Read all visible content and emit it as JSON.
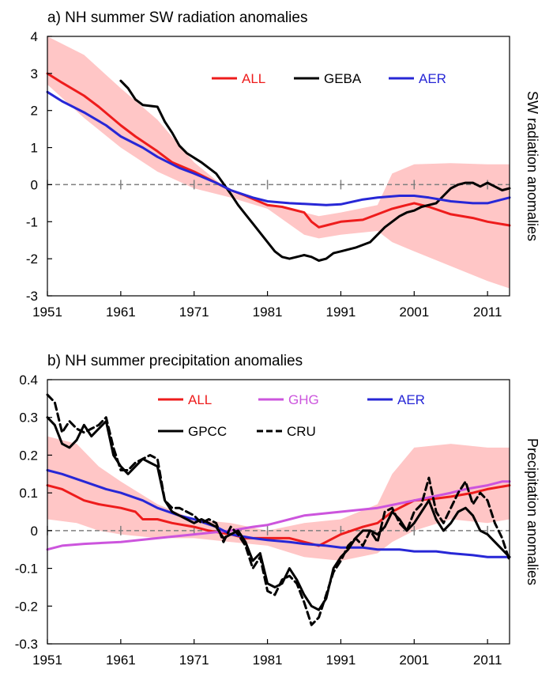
{
  "colors": {
    "ALL": "#ee1c1c",
    "GEBA": "#000000",
    "AER": "#2727d6",
    "GHG": "#cc55dd",
    "GPCC": "#000000",
    "CRU": "#000000",
    "band": "#ffc6c6",
    "zero": "#7f7f7f"
  },
  "chart_data": [
    {
      "type": "line",
      "title": "a) NH summer SW radiation anomalies",
      "ylabel": "SW radiation anomalies",
      "xlabel": "",
      "xlim": [
        1951,
        2014
      ],
      "ylim": [
        -3,
        4
      ],
      "xticks": [
        1951,
        1961,
        1971,
        1981,
        1991,
        2001,
        2011
      ],
      "yticks": [
        4,
        3,
        2,
        1,
        0,
        -1,
        -2,
        -3
      ],
      "grid": false,
      "zero_line": true,
      "legend": {
        "placement": "top-right",
        "items": [
          "ALL",
          "GEBA",
          "AER"
        ]
      },
      "band": {
        "x": [
          1951,
          1956,
          1961,
          1966,
          1971,
          1976,
          1981,
          1986,
          1988,
          1991,
          1996,
          1998,
          2001,
          2006,
          2011,
          2014
        ],
        "upper": [
          4.0,
          3.5,
          2.6,
          1.75,
          0.6,
          -0.2,
          -0.55,
          -0.75,
          -0.85,
          -0.75,
          -0.55,
          0.3,
          0.55,
          0.58,
          0.55,
          0.55
        ],
        "lower": [
          2.7,
          1.8,
          1.0,
          0.35,
          -0.1,
          -0.35,
          -0.65,
          -1.35,
          -1.45,
          -1.35,
          -1.25,
          -1.55,
          -1.8,
          -2.2,
          -2.6,
          -2.8
        ]
      },
      "series": [
        {
          "name": "ALL",
          "style": "solid",
          "x": [
            1951,
            1953,
            1956,
            1958,
            1961,
            1963,
            1966,
            1968,
            1971,
            1973,
            1976,
            1978,
            1981,
            1983,
            1986,
            1987,
            1988,
            1989,
            1991,
            1994,
            1996,
            1998,
            2000,
            2001,
            2003,
            2006,
            2009,
            2011,
            2014
          ],
          "y": [
            3.0,
            2.75,
            2.4,
            2.1,
            1.6,
            1.3,
            0.9,
            0.6,
            0.35,
            0.15,
            -0.15,
            -0.3,
            -0.55,
            -0.6,
            -0.75,
            -1.0,
            -1.15,
            -1.1,
            -1.0,
            -0.95,
            -0.8,
            -0.65,
            -0.55,
            -0.5,
            -0.6,
            -0.8,
            -0.9,
            -1.0,
            -1.1
          ]
        },
        {
          "name": "GEBA",
          "style": "solid",
          "x": [
            1961,
            1962,
            1963,
            1964,
            1966,
            1967,
            1968,
            1969,
            1970,
            1972,
            1974,
            1976,
            1977,
            1978,
            1979,
            1980,
            1981,
            1982,
            1983,
            1984,
            1985,
            1986,
            1987,
            1988,
            1989,
            1990,
            1991,
            1993,
            1995,
            1996,
            1997,
            1998,
            1999,
            2000,
            2001,
            2002,
            2003,
            2004,
            2005,
            2006,
            2007,
            2008,
            2009,
            2010,
            2011,
            2012,
            2013,
            2014
          ],
          "y": [
            2.8,
            2.6,
            2.3,
            2.15,
            2.1,
            1.7,
            1.4,
            1.05,
            0.85,
            0.6,
            0.3,
            -0.25,
            -0.55,
            -0.8,
            -1.05,
            -1.3,
            -1.55,
            -1.8,
            -1.95,
            -2.0,
            -1.95,
            -1.9,
            -1.95,
            -2.05,
            -2.0,
            -1.85,
            -1.8,
            -1.7,
            -1.55,
            -1.35,
            -1.15,
            -1.0,
            -0.85,
            -0.75,
            -0.7,
            -0.6,
            -0.55,
            -0.5,
            -0.3,
            -0.1,
            0.0,
            0.05,
            0.05,
            -0.05,
            0.05,
            -0.05,
            -0.15,
            -0.1
          ]
        },
        {
          "name": "AER",
          "style": "solid",
          "x": [
            1951,
            1953,
            1956,
            1959,
            1961,
            1964,
            1966,
            1969,
            1971,
            1974,
            1976,
            1979,
            1981,
            1984,
            1986,
            1989,
            1991,
            1994,
            1996,
            1999,
            2001,
            2003,
            2006,
            2009,
            2011,
            2013,
            2014
          ],
          "y": [
            2.5,
            2.25,
            1.95,
            1.6,
            1.3,
            1.0,
            0.75,
            0.45,
            0.3,
            0.05,
            -0.15,
            -0.35,
            -0.45,
            -0.5,
            -0.52,
            -0.55,
            -0.53,
            -0.4,
            -0.35,
            -0.3,
            -0.3,
            -0.35,
            -0.45,
            -0.5,
            -0.5,
            -0.4,
            -0.35
          ]
        }
      ]
    },
    {
      "type": "line",
      "title": "b) NH summer precipitation anomalies",
      "ylabel": "Precipitation anomalies",
      "xlabel": "",
      "xlim": [
        1951,
        2014
      ],
      "ylim": [
        -0.3,
        0.4
      ],
      "xticks": [
        1951,
        1961,
        1971,
        1981,
        1991,
        2001,
        2011
      ],
      "yticks": [
        0.4,
        0.3,
        0.2,
        0.1,
        0,
        -0.1,
        -0.2,
        -0.3
      ],
      "yticklabels": [
        "0.4",
        "0.3",
        "0.2",
        "0.1",
        "0",
        "-0.1",
        "-0.2",
        "-0.3"
      ],
      "grid": false,
      "zero_line": true,
      "legend": {
        "placement": "top",
        "items": [
          "ALL",
          "GHG",
          "AER",
          "GPCC",
          "CRU"
        ]
      },
      "band": {
        "x": [
          1951,
          1955,
          1958,
          1961,
          1966,
          1971,
          1976,
          1981,
          1986,
          1991,
          1996,
          1998,
          2001,
          2006,
          2011,
          2014
        ],
        "upper": [
          0.25,
          0.23,
          0.17,
          0.13,
          0.07,
          0.03,
          0.02,
          0.0,
          0.02,
          0.03,
          0.07,
          0.15,
          0.22,
          0.23,
          0.22,
          0.22
        ],
        "lower": [
          0.03,
          0.02,
          0.0,
          -0.01,
          -0.02,
          -0.02,
          -0.03,
          -0.04,
          -0.07,
          -0.08,
          -0.06,
          -0.03,
          0.0,
          0.03,
          0.02,
          0.03
        ]
      },
      "series": [
        {
          "name": "ALL",
          "style": "solid",
          "x": [
            1951,
            1953,
            1956,
            1958,
            1961,
            1963,
            1964,
            1966,
            1968,
            1971,
            1973,
            1976,
            1978,
            1981,
            1984,
            1986,
            1988,
            1991,
            1994,
            1996,
            1998,
            2001,
            2004,
            2006,
            2009,
            2011,
            2014
          ],
          "y": [
            0.12,
            0.11,
            0.08,
            0.07,
            0.06,
            0.05,
            0.03,
            0.03,
            0.02,
            0.01,
            0.0,
            -0.01,
            -0.02,
            -0.02,
            -0.02,
            -0.03,
            -0.04,
            -0.01,
            0.01,
            0.02,
            0.05,
            0.08,
            0.085,
            0.09,
            0.1,
            0.11,
            0.12
          ]
        },
        {
          "name": "GHG",
          "style": "solid",
          "x": [
            1951,
            1953,
            1956,
            1961,
            1966,
            1971,
            1976,
            1979,
            1981,
            1986,
            1991,
            1996,
            2001,
            2006,
            2008,
            2011,
            2013,
            2014
          ],
          "y": [
            -0.05,
            -0.04,
            -0.035,
            -0.03,
            -0.02,
            -0.01,
            0.0,
            0.01,
            0.015,
            0.04,
            0.05,
            0.06,
            0.08,
            0.1,
            0.11,
            0.12,
            0.13,
            0.13
          ]
        },
        {
          "name": "AER",
          "style": "solid",
          "x": [
            1951,
            1953,
            1956,
            1959,
            1961,
            1964,
            1966,
            1969,
            1971,
            1974,
            1976,
            1979,
            1981,
            1984,
            1986,
            1989,
            1991,
            1994,
            1996,
            1999,
            2001,
            2004,
            2006,
            2009,
            2011,
            2013,
            2014
          ],
          "y": [
            0.16,
            0.15,
            0.13,
            0.11,
            0.1,
            0.08,
            0.06,
            0.04,
            0.03,
            0.01,
            -0.01,
            -0.02,
            -0.025,
            -0.03,
            -0.035,
            -0.04,
            -0.045,
            -0.045,
            -0.05,
            -0.05,
            -0.055,
            -0.055,
            -0.06,
            -0.065,
            -0.07,
            -0.07,
            -0.07
          ]
        },
        {
          "name": "GPCC",
          "style": "solid",
          "x": [
            1951,
            1952,
            1953,
            1954,
            1955,
            1956,
            1957,
            1958,
            1959,
            1960,
            1961,
            1962,
            1963,
            1964,
            1965,
            1966,
            1967,
            1968,
            1969,
            1970,
            1971,
            1972,
            1973,
            1974,
            1975,
            1976,
            1977,
            1978,
            1979,
            1980,
            1981,
            1982,
            1983,
            1984,
            1985,
            1986,
            1987,
            1988,
            1989,
            1990,
            1991,
            1992,
            1993,
            1994,
            1995,
            1996,
            1997,
            1998,
            1999,
            2000,
            2001,
            2002,
            2003,
            2004,
            2005,
            2006,
            2007,
            2008,
            2009,
            2010,
            2011,
            2012,
            2013,
            2014
          ],
          "y": [
            0.3,
            0.28,
            0.23,
            0.22,
            0.24,
            0.28,
            0.25,
            0.27,
            0.29,
            0.2,
            0.17,
            0.15,
            0.17,
            0.19,
            0.18,
            0.17,
            0.08,
            0.05,
            0.04,
            0.03,
            0.02,
            0.03,
            0.02,
            0.01,
            -0.02,
            -0.01,
            0.0,
            -0.03,
            -0.08,
            -0.06,
            -0.14,
            -0.15,
            -0.14,
            -0.1,
            -0.13,
            -0.17,
            -0.2,
            -0.21,
            -0.18,
            -0.1,
            -0.07,
            -0.05,
            -0.02,
            0.0,
            0.0,
            -0.01,
            0.01,
            0.05,
            0.03,
            0.0,
            0.02,
            0.05,
            0.08,
            0.03,
            0.0,
            0.02,
            0.05,
            0.06,
            0.04,
            0.0,
            -0.01,
            -0.03,
            -0.05,
            -0.07
          ]
        },
        {
          "name": "CRU",
          "style": "dashed",
          "x": [
            1951,
            1952,
            1953,
            1954,
            1955,
            1956,
            1957,
            1958,
            1959,
            1960,
            1961,
            1962,
            1963,
            1964,
            1965,
            1966,
            1967,
            1968,
            1969,
            1970,
            1971,
            1972,
            1973,
            1974,
            1975,
            1976,
            1977,
            1978,
            1979,
            1980,
            1981,
            1982,
            1983,
            1984,
            1985,
            1986,
            1987,
            1988,
            1989,
            1990,
            1991,
            1992,
            1993,
            1994,
            1995,
            1996,
            1997,
            1998,
            1999,
            2000,
            2001,
            2002,
            2003,
            2004,
            2005,
            2006,
            2007,
            2008,
            2009,
            2010,
            2011,
            2012,
            2013,
            2014
          ],
          "y": [
            0.36,
            0.34,
            0.26,
            0.29,
            0.27,
            0.26,
            0.27,
            0.28,
            0.3,
            0.22,
            0.16,
            0.16,
            0.18,
            0.19,
            0.2,
            0.19,
            0.08,
            0.06,
            0.06,
            0.05,
            0.04,
            0.02,
            0.03,
            0.02,
            -0.03,
            0.01,
            -0.01,
            -0.04,
            -0.1,
            -0.07,
            -0.16,
            -0.17,
            -0.13,
            -0.12,
            -0.14,
            -0.19,
            -0.25,
            -0.23,
            -0.17,
            -0.11,
            -0.08,
            -0.04,
            -0.02,
            -0.04,
            0.0,
            -0.03,
            0.05,
            0.06,
            0.02,
            0.0,
            0.05,
            0.07,
            0.14,
            0.05,
            0.02,
            0.06,
            0.1,
            0.13,
            0.07,
            0.1,
            0.08,
            0.02,
            -0.02,
            -0.08
          ]
        }
      ]
    }
  ]
}
